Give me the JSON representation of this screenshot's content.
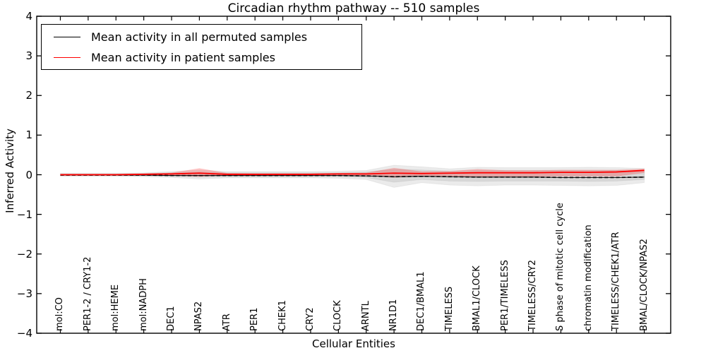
{
  "legend": {
    "items": [
      {
        "label": "Mean activity in all permuted samples",
        "color": "#000000"
      },
      {
        "label": "Mean activity in patient samples",
        "color": "#ff0000"
      }
    ]
  },
  "colors": {
    "permuted_line": "#000000",
    "patient_line": "#ff0000",
    "permuted_band": "#000000",
    "patient_band": "#ff0000",
    "axes": "#000000"
  },
  "chart_data": {
    "type": "line",
    "title": "Circadian rhythm pathway -- 510 samples",
    "xlabel": "Cellular Entities",
    "ylabel": "Inferred Activity",
    "legend_position": "upper left",
    "grid": false,
    "ylim": [
      -4,
      4
    ],
    "xlim": [
      -0.85,
      21.95
    ],
    "yticks": [
      -4,
      -3,
      -2,
      -1,
      0,
      1,
      2,
      3,
      4
    ],
    "ytick_labels": [
      "−4",
      "−3",
      "−2",
      "−1",
      "0",
      "1",
      "2",
      "3",
      "4"
    ],
    "categories": [
      "mol:CO",
      "PER1-2 / CRY1-2",
      "mol:HEME",
      "mol:NADPH",
      "DEC1",
      "NPAS2",
      "ATR",
      "PER1",
      "CHEK1",
      "CRY2",
      "CLOCK",
      "ARNTL",
      "NR1D1",
      "DEC1/BMAL1",
      "TIMELESS",
      "BMAL1/CLOCK",
      "PER1/TIMELESS",
      "TIMELESS/CRY2",
      "S phase of mitotic cell cycle",
      "chromatin modification",
      "TIMELESS/CHEK1/ATR",
      "BMAL/CLOCK/NPAS2"
    ],
    "series": [
      {
        "name": "Mean activity in all permuted samples",
        "color": "#000000",
        "style": "dashed",
        "values": [
          -0.01,
          -0.01,
          -0.01,
          -0.01,
          -0.02,
          -0.02,
          -0.02,
          -0.02,
          -0.02,
          -0.02,
          -0.02,
          -0.03,
          -0.05,
          -0.04,
          -0.05,
          -0.06,
          -0.06,
          -0.06,
          -0.07,
          -0.07,
          -0.07,
          -0.06
        ]
      },
      {
        "name": "Mean activity in patient samples",
        "color": "#ff0000",
        "style": "solid",
        "values": [
          0.0,
          0.0,
          0.0,
          0.01,
          0.02,
          0.04,
          0.01,
          0.01,
          0.01,
          0.01,
          0.02,
          0.02,
          0.04,
          0.03,
          0.04,
          0.05,
          0.05,
          0.05,
          0.06,
          0.06,
          0.07,
          0.11
        ]
      }
    ],
    "bands": [
      {
        "name": "permuted-range-outer",
        "color": "#000000",
        "opacity": 0.08,
        "upper": [
          0.04,
          0.04,
          0.04,
          0.05,
          0.08,
          0.12,
          0.08,
          0.08,
          0.08,
          0.08,
          0.09,
          0.11,
          0.24,
          0.2,
          0.15,
          0.19,
          0.18,
          0.18,
          0.18,
          0.19,
          0.18,
          0.16
        ],
        "lower": [
          -0.04,
          -0.04,
          -0.04,
          -0.05,
          -0.07,
          -0.11,
          -0.08,
          -0.08,
          -0.08,
          -0.08,
          -0.09,
          -0.12,
          -0.32,
          -0.2,
          -0.26,
          -0.28,
          -0.26,
          -0.26,
          -0.27,
          -0.28,
          -0.27,
          -0.2
        ]
      },
      {
        "name": "permuted-range-inner",
        "color": "#000000",
        "opacity": 0.08,
        "upper": [
          0.02,
          0.02,
          0.02,
          0.03,
          0.05,
          0.07,
          0.05,
          0.05,
          0.05,
          0.05,
          0.05,
          0.07,
          0.14,
          0.12,
          0.09,
          0.11,
          0.11,
          0.11,
          0.11,
          0.11,
          0.11,
          0.1
        ],
        "lower": [
          -0.02,
          -0.02,
          -0.02,
          -0.03,
          -0.04,
          -0.06,
          -0.05,
          -0.05,
          -0.05,
          -0.05,
          -0.05,
          -0.07,
          -0.19,
          -0.12,
          -0.16,
          -0.17,
          -0.16,
          -0.16,
          -0.16,
          -0.17,
          -0.16,
          -0.12
        ]
      },
      {
        "name": "patient-range",
        "color": "#ff0000",
        "opacity": 0.22,
        "upper": [
          0.02,
          0.02,
          0.02,
          0.03,
          0.05,
          0.16,
          0.04,
          0.03,
          0.03,
          0.03,
          0.04,
          0.05,
          0.17,
          0.08,
          0.09,
          0.14,
          0.11,
          0.11,
          0.12,
          0.12,
          0.12,
          0.15
        ],
        "lower": [
          -0.02,
          -0.02,
          -0.02,
          -0.02,
          -0.02,
          -0.05,
          -0.02,
          -0.02,
          -0.02,
          -0.02,
          -0.02,
          -0.03,
          -0.07,
          -0.04,
          -0.04,
          -0.05,
          -0.05,
          -0.05,
          -0.04,
          -0.04,
          -0.04,
          0.05
        ]
      }
    ]
  }
}
